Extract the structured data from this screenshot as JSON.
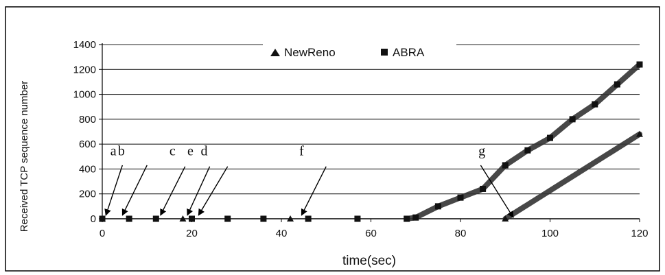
{
  "chart_data": {
    "type": "scatter",
    "title": "",
    "xlabel": "time(sec)",
    "ylabel": "Received TCP sequence number",
    "xlim": [
      0,
      120
    ],
    "ylim": [
      0,
      1400
    ],
    "xticks": [
      0,
      20,
      40,
      60,
      80,
      100,
      120
    ],
    "yticks": [
      0,
      200,
      400,
      600,
      800,
      1000,
      1200,
      1400
    ],
    "grid": "horizontal",
    "legend_position": "top",
    "legend": [
      "NewReno",
      "ABRA"
    ],
    "series": [
      {
        "name": "NewReno",
        "marker": "triangle",
        "points": [
          [
            0,
            0
          ],
          [
            18,
            0
          ],
          [
            42,
            0
          ],
          [
            90,
            0
          ],
          [
            120,
            680
          ]
        ]
      },
      {
        "name": "ABRA",
        "marker": "square",
        "points": [
          [
            0,
            0
          ],
          [
            6,
            0
          ],
          [
            12,
            0
          ],
          [
            20,
            0
          ],
          [
            28,
            0
          ],
          [
            36,
            0
          ],
          [
            46,
            0
          ],
          [
            57,
            0
          ],
          [
            68,
            0
          ],
          [
            70,
            10
          ],
          [
            75,
            100
          ],
          [
            80,
            170
          ],
          [
            85,
            240
          ],
          [
            90,
            430
          ],
          [
            95,
            550
          ],
          [
            100,
            650
          ],
          [
            105,
            800
          ],
          [
            110,
            920
          ],
          [
            115,
            1080
          ],
          [
            120,
            1240
          ]
        ]
      }
    ],
    "annotations": [
      {
        "label": "a",
        "text_at": [
          1.8,
          510
        ],
        "arrow_from": [
          4.5,
          430
        ],
        "arrow_to": [
          0.8,
          28
        ]
      },
      {
        "label": "b",
        "text_at": [
          3.5,
          510
        ],
        "arrow_from": [
          10,
          430
        ],
        "arrow_to": [
          4.5,
          28
        ]
      },
      {
        "label": "c",
        "text_at": [
          15,
          510
        ],
        "arrow_from": [
          18.5,
          420
        ],
        "arrow_to": [
          13,
          28
        ]
      },
      {
        "label": "e",
        "text_at": [
          19,
          510
        ],
        "arrow_from": [
          24,
          420
        ],
        "arrow_to": [
          19,
          28
        ]
      },
      {
        "label": "d",
        "text_at": [
          22,
          510
        ],
        "arrow_from": [
          28,
          420
        ],
        "arrow_to": [
          21.5,
          28
        ]
      },
      {
        "label": "f",
        "text_at": [
          44,
          510
        ],
        "arrow_from": [
          50,
          420
        ],
        "arrow_to": [
          44.5,
          28
        ]
      },
      {
        "label": "g",
        "text_at": [
          84,
          510
        ],
        "arrow_from": [
          84.5,
          430
        ],
        "arrow_to": [
          91.8,
          10
        ]
      }
    ]
  }
}
